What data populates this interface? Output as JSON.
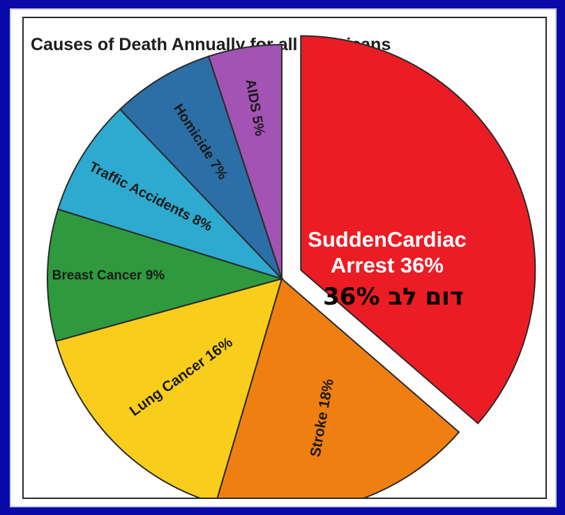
{
  "chart_data": {
    "type": "pie",
    "title": "Causes of Death Annually for all Americans",
    "slices": [
      {
        "label": "SuddenCardiac Arrest 36%",
        "value": 36,
        "color": "#ec1c24",
        "exploded": true
      },
      {
        "label": "Stroke 18%",
        "value": 18,
        "color": "#f07f12"
      },
      {
        "label": "Lung Cancer 16%",
        "value": 16,
        "color": "#f9cd1c"
      },
      {
        "label": "Breast Cancer 9%",
        "value": 9,
        "color": "#2e9a3d"
      },
      {
        "label": "Traffic Accidents 8%",
        "value": 8,
        "color": "#2ea9cf"
      },
      {
        "label": "Homicide 7%",
        "value": 7,
        "color": "#2c6ea6"
      },
      {
        "label": "AIDS 5%",
        "value": 5,
        "color": "#a353b3"
      }
    ],
    "highlight": {
      "line1": "SuddenCardiac",
      "line2": "Arrest 36%",
      "hebrew": "דום לב 36%"
    }
  }
}
